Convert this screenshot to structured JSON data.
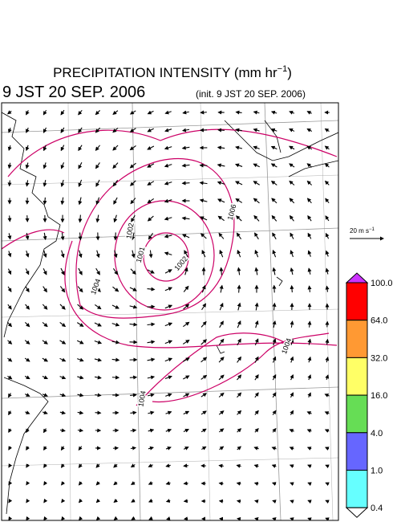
{
  "header": {
    "title": "PRECIPITATION INTENSITY (mm hr",
    "title_exponent": "−1",
    "title_end": ")",
    "valid_time": "9 JST 20 SEP. 2006",
    "init_time": "(init. 9 JST 20 SEP. 2006)"
  },
  "vector_scale": {
    "label": "20 m s",
    "exponent": "−1"
  },
  "contour_labels": [
    "1004",
    "1001",
    "1002",
    "1006",
    "1004",
    "1004",
    "1002"
  ],
  "colorbar": {
    "labels": [
      "100.0",
      "64.0",
      "32.0",
      "16.0",
      "4.0",
      "1.0",
      "0.4"
    ],
    "colors": [
      "#ff0000",
      "#ff9933",
      "#ffff66",
      "#66dd55",
      "#6666ff",
      "#66ffff"
    ],
    "over_color": "#cc33ff",
    "under_color": "#ffffff"
  }
}
